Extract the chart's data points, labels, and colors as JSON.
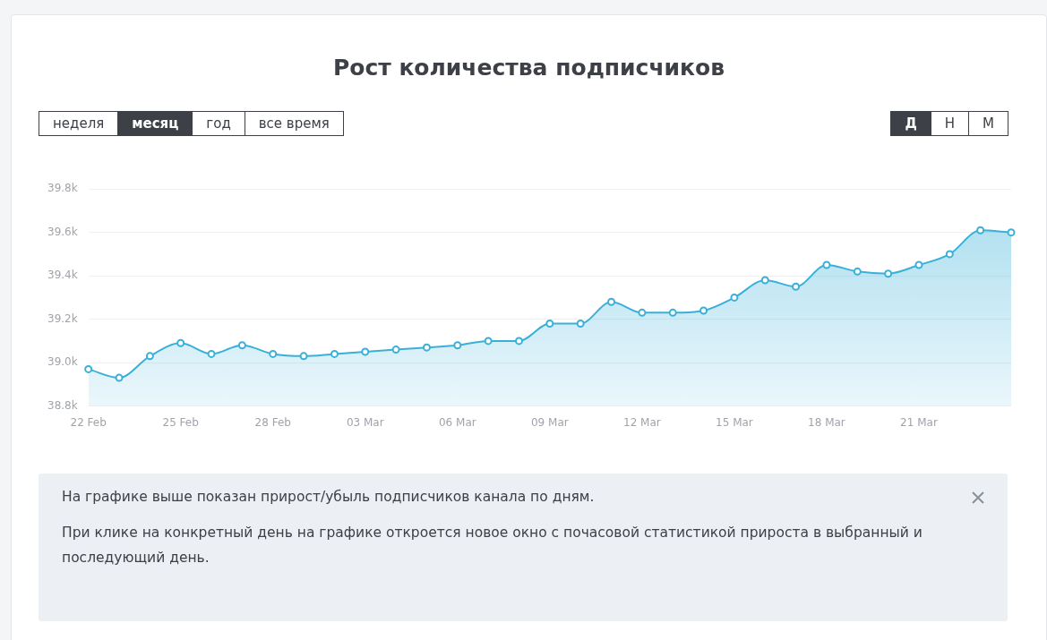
{
  "chart_data": {
    "type": "area",
    "title": "Рост количества подписчиков",
    "categories": [
      "22 Feb",
      null,
      null,
      "25 Feb",
      null,
      null,
      "28 Feb",
      null,
      null,
      "03 Mar",
      null,
      null,
      "06 Mar",
      null,
      null,
      "09 Mar",
      null,
      null,
      "12 Mar",
      null,
      null,
      "15 Mar",
      null,
      null,
      "18 Mar",
      null,
      null,
      "21 Mar",
      null,
      null,
      null
    ],
    "series": [
      {
        "color": "#3ab0d9",
        "values": [
          38970,
          38930,
          39030,
          39090,
          39040,
          39080,
          39040,
          39030,
          39040,
          39050,
          39060,
          39070,
          39080,
          39100,
          39100,
          39180,
          39180,
          39280,
          39230,
          39230,
          39240,
          39300,
          39380,
          39350,
          39450,
          39420,
          39410,
          39450,
          39500,
          39610,
          39600
        ]
      }
    ],
    "ylim": [
      38800,
      39800
    ],
    "yticks": [
      {
        "value": 38800,
        "label": "38.8k"
      },
      {
        "value": 39000,
        "label": "39.0k"
      },
      {
        "value": 39200,
        "label": "39.2k"
      },
      {
        "value": 39400,
        "label": "39.4k"
      },
      {
        "value": 39600,
        "label": "39.6k"
      },
      {
        "value": 39800,
        "label": "39.8k"
      }
    ],
    "grid": "y",
    "legend": false,
    "marker": "circle",
    "line_style": "solid",
    "annotations": [
      "неделя",
      "месяц",
      "год",
      "все время",
      "Д",
      "Н",
      "М",
      "На графике выше показан прирост/убыль подписчиков канала по дням.",
      "При клике на конкретный день на графике откроется новое окно с почасовой статистикой прироста в выбранный и последующий день."
    ]
  }
}
